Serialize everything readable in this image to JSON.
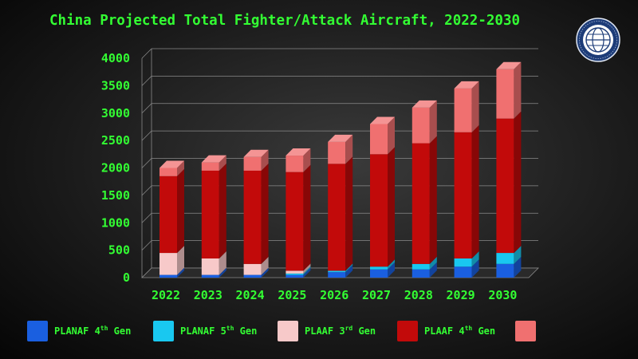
{
  "chart_data": {
    "type": "bar",
    "stacked": true,
    "title": "China Projected Total Fighter/Attack Aircraft, 2022-2030",
    "xlabel": "",
    "ylabel": "",
    "ylim": [
      0,
      4000
    ],
    "yticks": [
      0,
      500,
      1000,
      1500,
      2000,
      2500,
      3000,
      3500,
      4000
    ],
    "grid": true,
    "legend_position": "bottom",
    "categories": [
      "2022",
      "2023",
      "2024",
      "2025",
      "2026",
      "2027",
      "2028",
      "2029",
      "2030"
    ],
    "series": [
      {
        "name": "PLANAF 4th Gen",
        "name_base": "PLANAF 4",
        "name_sup": "th",
        "name_tail": " Gen",
        "color": "#1a5fe0",
        "values": [
          50,
          50,
          50,
          50,
          100,
          150,
          150,
          200,
          250
        ]
      },
      {
        "name": "PLANAF 5th Gen",
        "name_base": "PLANAF 5",
        "name_sup": "th",
        "name_tail": " Gen",
        "color": "#19c8f0",
        "values": [
          0,
          0,
          0,
          25,
          25,
          50,
          100,
          150,
          200
        ]
      },
      {
        "name": "PLAAF 3rd Gen",
        "name_base": "PLAAF 3",
        "name_sup": "rd",
        "name_tail": " Gen",
        "color": "#f7c9c9",
        "values": [
          400,
          300,
          200,
          50,
          0,
          0,
          0,
          0,
          0
        ]
      },
      {
        "name": "PLAAF 4th Gen",
        "name_base": "PLAAF 4",
        "name_sup": "th",
        "name_tail": " Gen",
        "color": "#c20a0a",
        "values": [
          1400,
          1600,
          1700,
          1800,
          1950,
          2050,
          2200,
          2300,
          2450
        ]
      },
      {
        "name": "",
        "name_base": "",
        "name_sup": "",
        "name_tail": "",
        "color": "#f07070",
        "values": [
          150,
          150,
          250,
          300,
          400,
          550,
          650,
          800,
          900
        ]
      }
    ]
  },
  "logo": {
    "icon": "globe-seal-icon"
  }
}
